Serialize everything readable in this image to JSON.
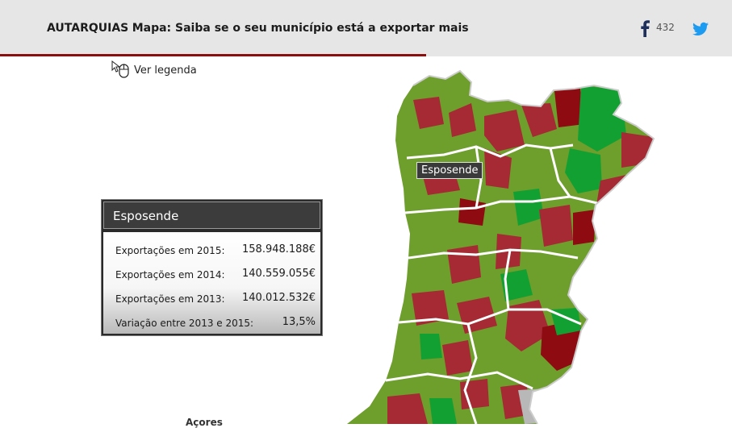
{
  "header": {
    "section": "AUTARQUIAS",
    "title": "Mapa: Saiba se o seu município está a exportar mais",
    "facebook_count": "432",
    "colors": {
      "background": "#e6e6e6",
      "accent": "#8b0d0d"
    }
  },
  "legend_link": {
    "label": "Ver legenda",
    "icon": "mouse-icon"
  },
  "map": {
    "hover_label": "Esposende",
    "colors": {
      "increase": "#6e9e2c",
      "strong_increase": "#13a032",
      "decrease": "#a52a33",
      "strong_decrease": "#8e0b12",
      "no_data": "#b8b8b8"
    }
  },
  "panel": {
    "title": "Esposende",
    "rows": [
      {
        "label": "Exportações em 2015:",
        "value": "158.948.188€"
      },
      {
        "label": "Exportações em 2014:",
        "value": "140.559.055€"
      },
      {
        "label": "Exportações em 2013:",
        "value": "140.012.532€"
      },
      {
        "label": "Variação entre 2013 e 2015:",
        "value": "13,5%"
      }
    ]
  },
  "footer_label": "Açores"
}
